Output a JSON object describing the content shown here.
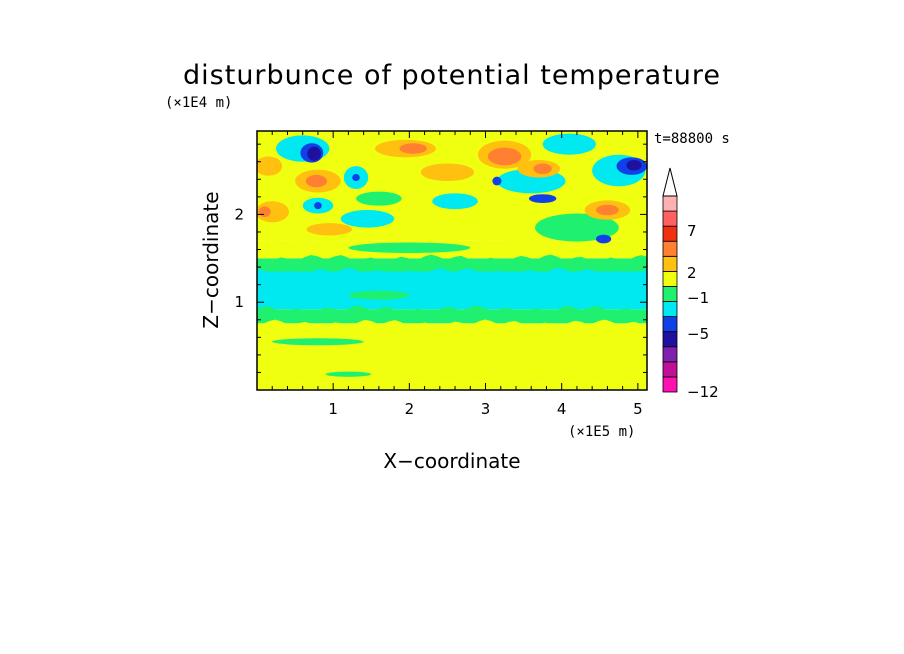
{
  "chart_data": {
    "type": "heatmap",
    "title": "disturbunce of potential temperature",
    "xlabel": "X−coordinate",
    "ylabel": "Z−coordinate",
    "x_unit_label": "(×1E5 m)",
    "y_unit_label": "(×1E4 m)",
    "time_label": "t=88800 s",
    "xlim": [
      0,
      5.12
    ],
    "ylim": [
      0,
      2.95
    ],
    "x_ticks": [
      1,
      2,
      3,
      4,
      5
    ],
    "y_ticks": [
      1,
      2
    ],
    "x_tick_labels": [
      "1",
      "2",
      "3",
      "4",
      "5"
    ],
    "y_tick_labels": [
      "1",
      "2"
    ],
    "colorbar": {
      "tick_labels": [
        "7",
        "2",
        "−1",
        "−5",
        "−12"
      ],
      "colors": [
        "#ff10b0",
        "#c01098",
        "#8020b0",
        "#2010a0",
        "#1040e8",
        "#00e8f0",
        "#20f070",
        "#f0ff10",
        "#ffc010",
        "#ff8030",
        "#f03010",
        "#ff6060",
        "#ffb0b0"
      ],
      "extend_top": true
    },
    "layers": [
      {
        "z": [
          0.0,
          0.09
        ],
        "value": 0,
        "color": "#f0ff10"
      },
      {
        "z": [
          0.09,
          0.76
        ],
        "value": 0,
        "color": "#f0ff10"
      },
      {
        "z": [
          0.76,
          0.92
        ],
        "value": -0.5,
        "color": "#20f070"
      },
      {
        "z": [
          0.92,
          1.35
        ],
        "value": -1.5,
        "color": "#00e8f0"
      },
      {
        "z": [
          1.35,
          1.5
        ],
        "value": -0.5,
        "color": "#20f070"
      },
      {
        "z": [
          1.5,
          1.7
        ],
        "value": 0,
        "color": "#f0ff10"
      },
      {
        "z": [
          1.7,
          2.95
        ],
        "value": 0.5,
        "color": "#f0ff10"
      }
    ],
    "features": [
      {
        "x": 0.6,
        "z": 2.75,
        "rx": 0.35,
        "rz": 0.15,
        "color": "#00e8f0"
      },
      {
        "x": 0.72,
        "z": 2.7,
        "rx": 0.15,
        "rz": 0.11,
        "color": "#1040e8"
      },
      {
        "x": 0.75,
        "z": 2.69,
        "rx": 0.09,
        "rz": 0.08,
        "color": "#2010a0"
      },
      {
        "x": 0.8,
        "z": 2.38,
        "rx": 0.3,
        "rz": 0.13,
        "color": "#ffc010"
      },
      {
        "x": 0.78,
        "z": 2.38,
        "rx": 0.14,
        "rz": 0.07,
        "color": "#ff8030"
      },
      {
        "x": 0.8,
        "z": 2.1,
        "rx": 0.2,
        "rz": 0.09,
        "color": "#00e8f0"
      },
      {
        "x": 0.8,
        "z": 2.1,
        "rx": 0.05,
        "rz": 0.04,
        "color": "#1040e8"
      },
      {
        "x": 1.3,
        "z": 2.42,
        "rx": 0.16,
        "rz": 0.13,
        "color": "#00e8f0"
      },
      {
        "x": 1.3,
        "z": 2.42,
        "rx": 0.05,
        "rz": 0.04,
        "color": "#1040e8"
      },
      {
        "x": 0.2,
        "z": 2.03,
        "rx": 0.22,
        "rz": 0.12,
        "color": "#ffc010"
      },
      {
        "x": 0.1,
        "z": 2.03,
        "rx": 0.08,
        "rz": 0.06,
        "color": "#ff8030"
      },
      {
        "x": 0.15,
        "z": 2.55,
        "rx": 0.18,
        "rz": 0.11,
        "color": "#ffc010"
      },
      {
        "x": 0.95,
        "z": 1.83,
        "rx": 0.3,
        "rz": 0.07,
        "color": "#ffc010"
      },
      {
        "x": 1.45,
        "z": 1.95,
        "rx": 0.35,
        "rz": 0.1,
        "color": "#00e8f0"
      },
      {
        "x": 2.6,
        "z": 2.15,
        "rx": 0.3,
        "rz": 0.09,
        "color": "#00e8f0"
      },
      {
        "x": 1.95,
        "z": 2.75,
        "rx": 0.4,
        "rz": 0.1,
        "color": "#ffc010"
      },
      {
        "x": 2.05,
        "z": 2.75,
        "rx": 0.18,
        "rz": 0.06,
        "color": "#ff8030"
      },
      {
        "x": 3.25,
        "z": 2.68,
        "rx": 0.35,
        "rz": 0.16,
        "color": "#ffc010"
      },
      {
        "x": 3.25,
        "z": 2.66,
        "rx": 0.22,
        "rz": 0.1,
        "color": "#ff8030"
      },
      {
        "x": 3.6,
        "z": 2.38,
        "rx": 0.45,
        "rz": 0.14,
        "color": "#00e8f0"
      },
      {
        "x": 3.15,
        "z": 2.38,
        "rx": 0.06,
        "rz": 0.05,
        "color": "#1040e8"
      },
      {
        "x": 3.75,
        "z": 2.18,
        "rx": 0.18,
        "rz": 0.05,
        "color": "#1040e8"
      },
      {
        "x": 3.7,
        "z": 2.52,
        "rx": 0.28,
        "rz": 0.1,
        "color": "#ffc010"
      },
      {
        "x": 3.75,
        "z": 2.52,
        "rx": 0.12,
        "rz": 0.06,
        "color": "#ff8030"
      },
      {
        "x": 4.2,
        "z": 1.85,
        "rx": 0.55,
        "rz": 0.16,
        "color": "#20f070"
      },
      {
        "x": 4.75,
        "z": 2.5,
        "rx": 0.35,
        "rz": 0.18,
        "color": "#00e8f0"
      },
      {
        "x": 4.92,
        "z": 2.55,
        "rx": 0.2,
        "rz": 0.1,
        "color": "#1040e8"
      },
      {
        "x": 4.95,
        "z": 2.56,
        "rx": 0.1,
        "rz": 0.06,
        "color": "#2010a0"
      },
      {
        "x": 4.6,
        "z": 2.05,
        "rx": 0.3,
        "rz": 0.11,
        "color": "#ffc010"
      },
      {
        "x": 4.6,
        "z": 2.05,
        "rx": 0.15,
        "rz": 0.06,
        "color": "#ff8030"
      },
      {
        "x": 4.55,
        "z": 1.72,
        "rx": 0.1,
        "rz": 0.05,
        "color": "#1040e8"
      },
      {
        "x": 4.1,
        "z": 2.8,
        "rx": 0.35,
        "rz": 0.12,
        "color": "#00e8f0"
      },
      {
        "x": 2.5,
        "z": 2.48,
        "rx": 0.35,
        "rz": 0.1,
        "color": "#ffc010"
      },
      {
        "x": 1.6,
        "z": 2.18,
        "rx": 0.3,
        "rz": 0.08,
        "color": "#20f070"
      },
      {
        "x": 2.0,
        "z": 1.62,
        "rx": 0.8,
        "rz": 0.06,
        "color": "#20f070"
      },
      {
        "x": 1.6,
        "z": 1.08,
        "rx": 0.4,
        "rz": 0.05,
        "color": "#20f070"
      },
      {
        "x": 0.8,
        "z": 0.55,
        "rx": 0.6,
        "rz": 0.04,
        "color": "#20f070"
      },
      {
        "x": 1.2,
        "z": 0.18,
        "rx": 0.3,
        "rz": 0.03,
        "color": "#20f070"
      }
    ]
  }
}
